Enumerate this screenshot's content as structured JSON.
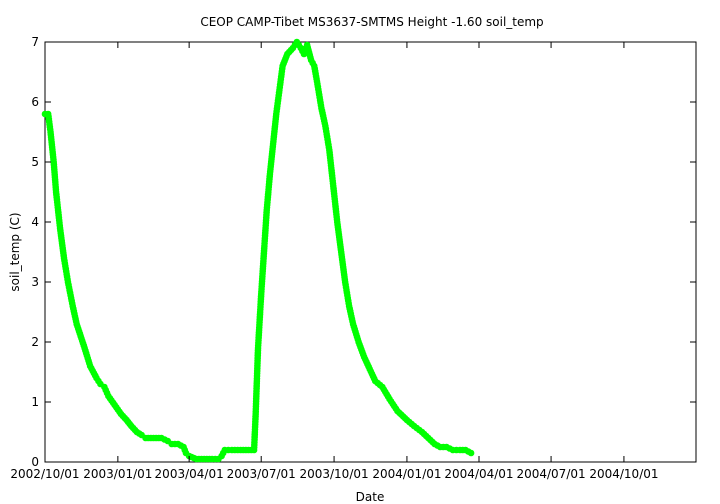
{
  "chart_data": {
    "type": "scatter",
    "title": "CEOP CAMP-Tibet MS3637-SMTMS Height -1.60 soil_temp",
    "xlabel": "Date",
    "ylabel": "soil_temp (C)",
    "xlim": [
      "2002-10-01",
      "2004-12-31"
    ],
    "ylim": [
      0,
      7
    ],
    "x_ticks": [
      "2002/10/01",
      "2003/01/01",
      "2003/04/01",
      "2003/07/01",
      "2003/10/01",
      "2004/01/01",
      "2004/04/01",
      "2004/07/01",
      "2004/10/01"
    ],
    "y_ticks": [
      "0",
      "1",
      "2",
      "3",
      "4",
      "5",
      "6",
      "7"
    ],
    "grid": false,
    "legend": "none",
    "series": [
      {
        "color": "#00ff00",
        "marker": "circle",
        "points": [
          [
            "2002-10-01",
            5.8
          ],
          [
            "2002-10-05",
            5.8
          ],
          [
            "2002-10-08",
            5.5
          ],
          [
            "2002-10-12",
            5.0
          ],
          [
            "2002-10-15",
            4.5
          ],
          [
            "2002-10-20",
            3.9
          ],
          [
            "2002-10-25",
            3.4
          ],
          [
            "2002-10-30",
            3.0
          ],
          [
            "2002-11-05",
            2.6
          ],
          [
            "2002-11-10",
            2.3
          ],
          [
            "2002-11-15",
            2.1
          ],
          [
            "2002-11-20",
            1.9
          ],
          [
            "2002-11-27",
            1.6
          ],
          [
            "2002-12-05",
            1.4
          ],
          [
            "2002-12-10",
            1.3
          ],
          [
            "2002-12-15",
            1.25
          ],
          [
            "2002-12-20",
            1.1
          ],
          [
            "2002-12-28",
            0.95
          ],
          [
            "2003-01-05",
            0.8
          ],
          [
            "2003-01-12",
            0.7
          ],
          [
            "2003-01-18",
            0.6
          ],
          [
            "2003-01-25",
            0.5
          ],
          [
            "2003-01-31",
            0.45
          ],
          [
            "2003-02-05",
            0.4
          ],
          [
            "2003-02-15",
            0.4
          ],
          [
            "2003-02-25",
            0.4
          ],
          [
            "2003-03-05",
            0.35
          ],
          [
            "2003-03-10",
            0.3
          ],
          [
            "2003-03-18",
            0.3
          ],
          [
            "2003-03-25",
            0.25
          ],
          [
            "2003-03-28",
            0.15
          ],
          [
            "2003-04-01",
            0.1
          ],
          [
            "2003-04-10",
            0.05
          ],
          [
            "2003-04-20",
            0.05
          ],
          [
            "2003-04-30",
            0.05
          ],
          [
            "2003-05-08",
            0.05
          ],
          [
            "2003-05-12",
            0.1
          ],
          [
            "2003-05-16",
            0.2
          ],
          [
            "2003-05-25",
            0.2
          ],
          [
            "2003-06-05",
            0.2
          ],
          [
            "2003-06-15",
            0.2
          ],
          [
            "2003-06-22",
            0.2
          ],
          [
            "2003-06-24",
            0.8
          ],
          [
            "2003-06-27",
            1.9
          ],
          [
            "2003-07-01",
            2.8
          ],
          [
            "2003-07-05",
            3.6
          ],
          [
            "2003-07-08",
            4.2
          ],
          [
            "2003-07-12",
            4.8
          ],
          [
            "2003-07-16",
            5.3
          ],
          [
            "2003-07-20",
            5.8
          ],
          [
            "2003-07-24",
            6.2
          ],
          [
            "2003-07-28",
            6.6
          ],
          [
            "2003-08-03",
            6.8
          ],
          [
            "2003-08-10",
            6.9
          ],
          [
            "2003-08-15",
            7.0
          ],
          [
            "2003-08-20",
            6.9
          ],
          [
            "2003-08-24",
            6.8
          ],
          [
            "2003-08-28",
            6.95
          ],
          [
            "2003-09-02",
            6.7
          ],
          [
            "2003-09-06",
            6.6
          ],
          [
            "2003-09-10",
            6.3
          ],
          [
            "2003-09-15",
            5.9
          ],
          [
            "2003-09-20",
            5.6
          ],
          [
            "2003-09-25",
            5.2
          ],
          [
            "2003-09-30",
            4.6
          ],
          [
            "2003-10-05",
            4.0
          ],
          [
            "2003-10-10",
            3.5
          ],
          [
            "2003-10-15",
            3.0
          ],
          [
            "2003-10-20",
            2.6
          ],
          [
            "2003-10-25",
            2.3
          ],
          [
            "2003-11-01",
            2.0
          ],
          [
            "2003-11-08",
            1.75
          ],
          [
            "2003-11-15",
            1.55
          ],
          [
            "2003-11-22",
            1.35
          ],
          [
            "2003-12-01",
            1.25
          ],
          [
            "2003-12-10",
            1.05
          ],
          [
            "2003-12-20",
            0.85
          ],
          [
            "2004-01-01",
            0.7
          ],
          [
            "2004-01-10",
            0.6
          ],
          [
            "2004-01-20",
            0.5
          ],
          [
            "2004-01-28",
            0.4
          ],
          [
            "2004-02-05",
            0.3
          ],
          [
            "2004-02-12",
            0.25
          ],
          [
            "2004-02-20",
            0.25
          ],
          [
            "2004-02-28",
            0.2
          ],
          [
            "2004-03-08",
            0.2
          ],
          [
            "2004-03-15",
            0.2
          ],
          [
            "2004-03-22",
            0.15
          ]
        ]
      }
    ]
  }
}
